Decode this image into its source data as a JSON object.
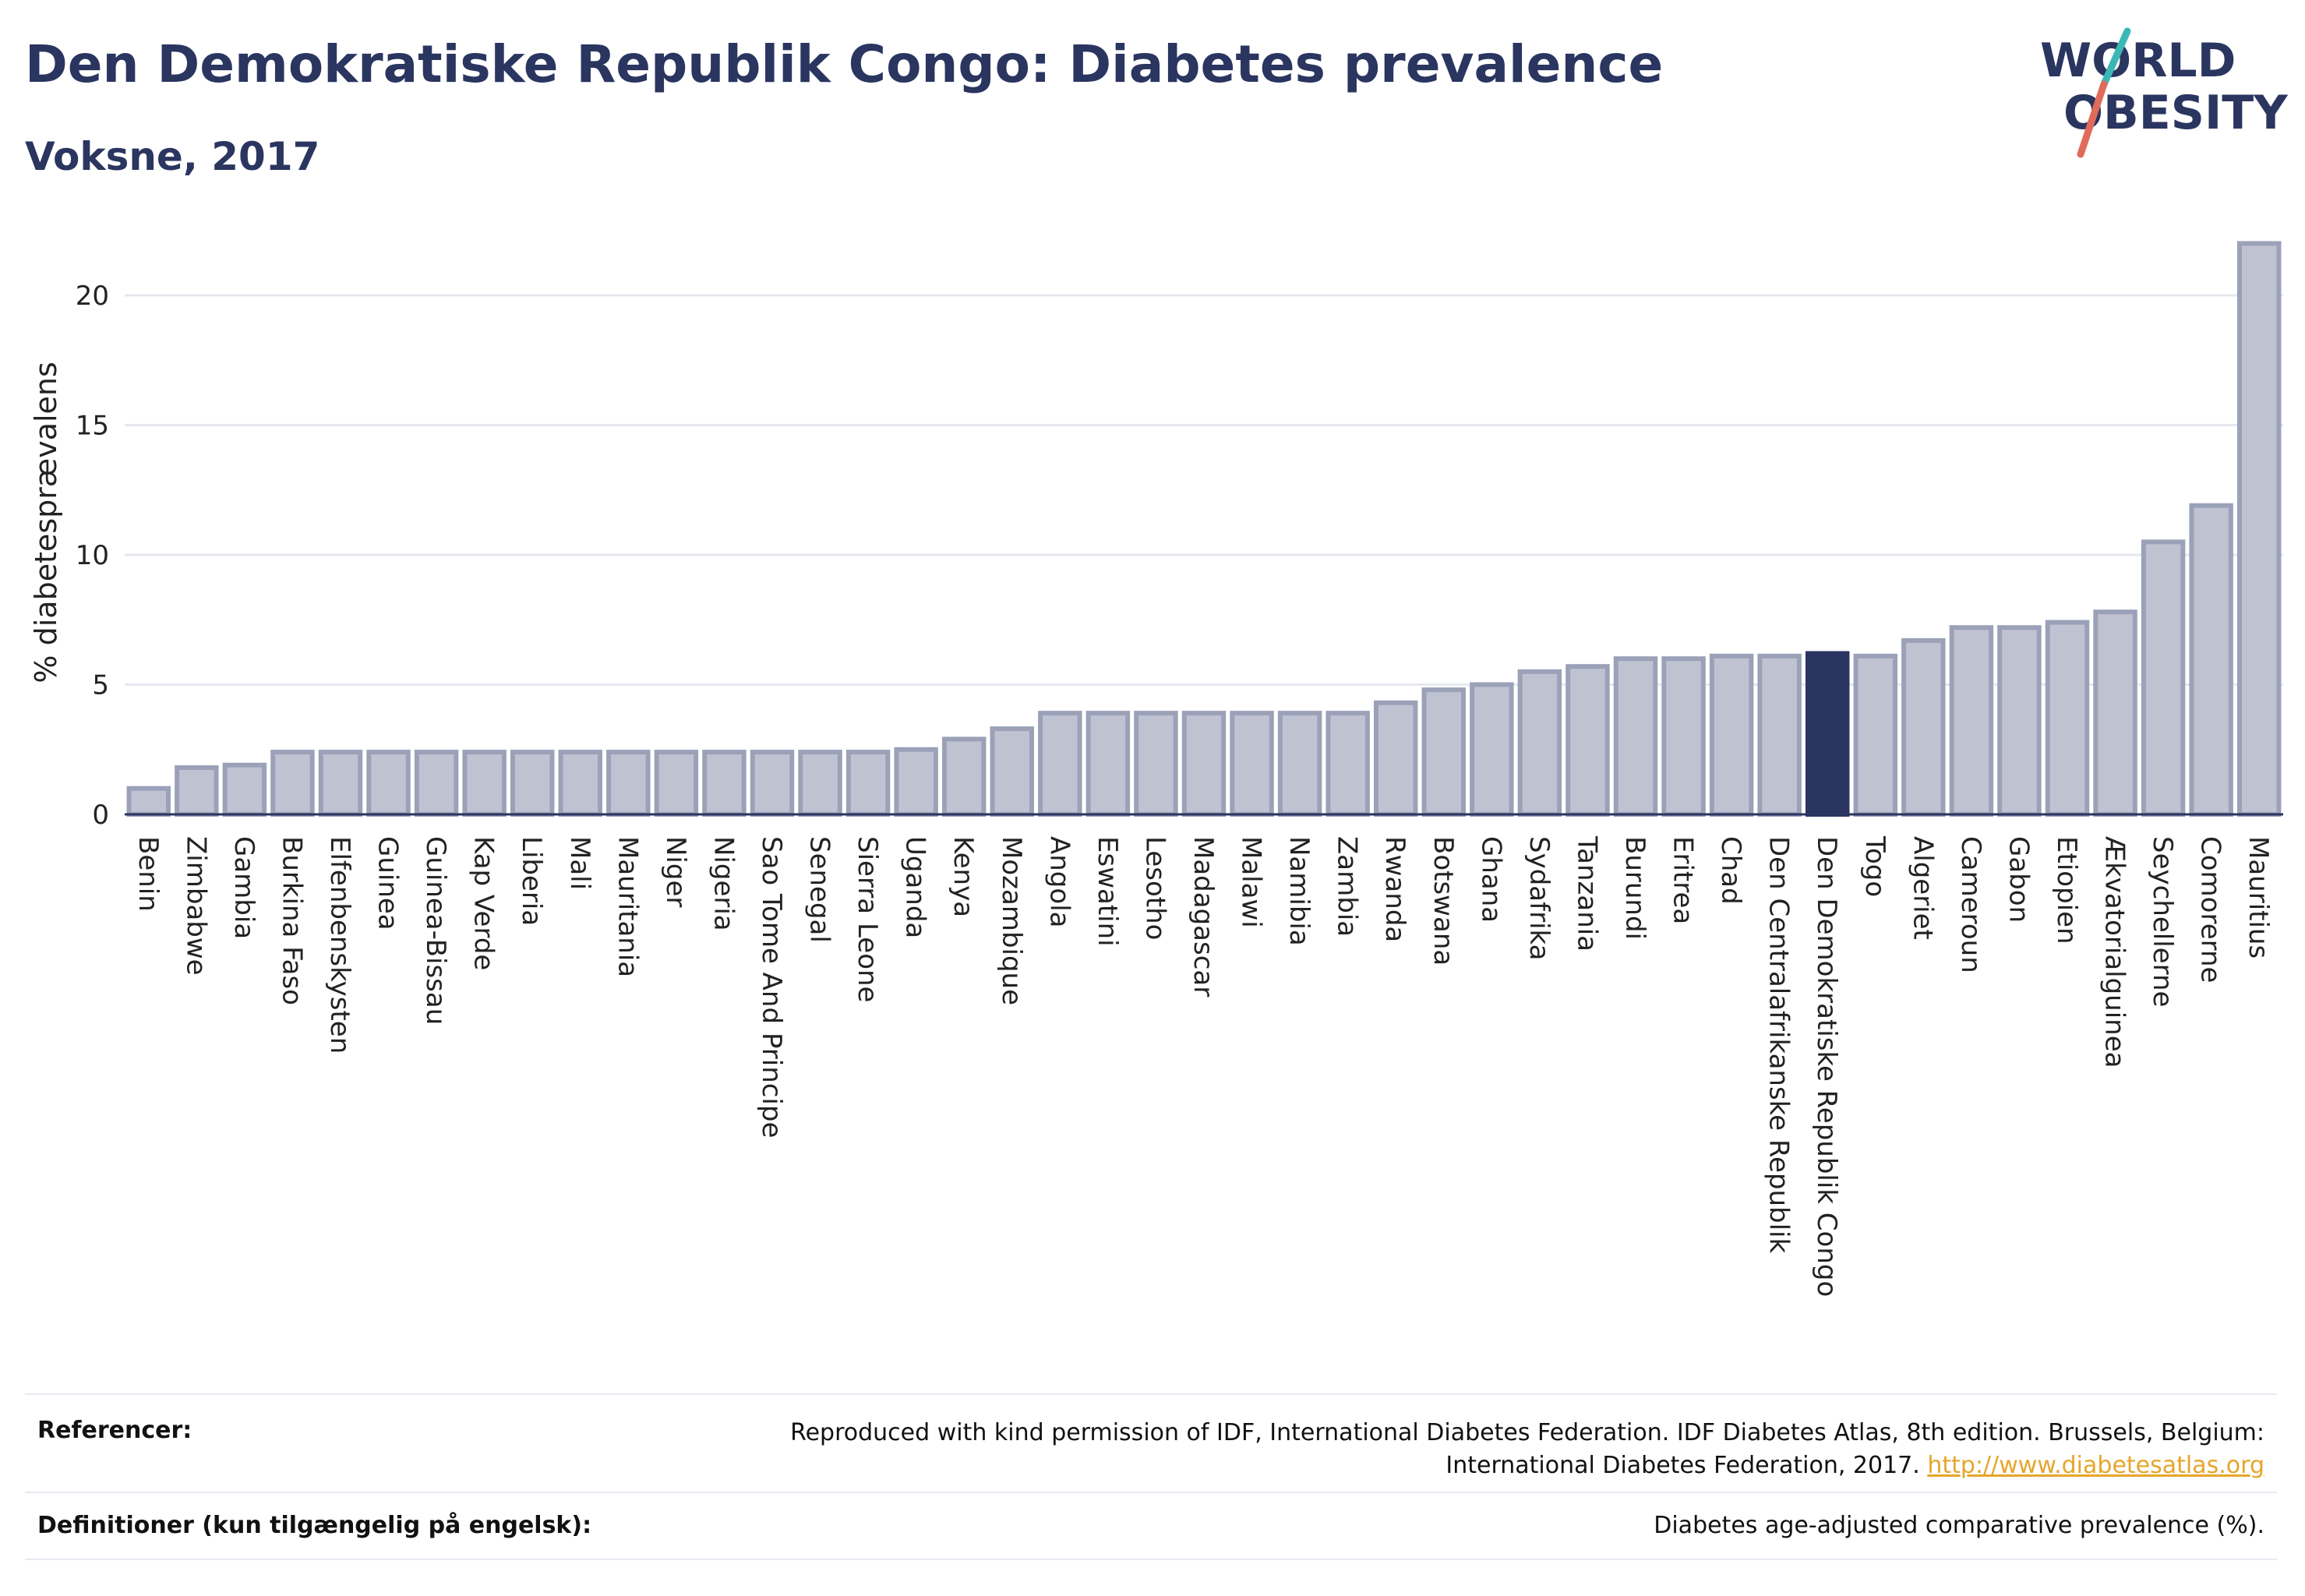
{
  "header": {
    "title": "Den Demokratiske Republik Congo: Diabetes prevalence",
    "subtitle": "Voksne, 2017"
  },
  "logo": {
    "line1": "WORLD",
    "line2": "OBESITY",
    "colors": {
      "text": "#2a3560",
      "slash_teal": "#3bb7b5",
      "slash_red": "#e16b5a"
    }
  },
  "chart_data": {
    "type": "bar",
    "title": "",
    "xlabel": "",
    "ylabel": "% diabetesprævalens",
    "ylim": [
      0,
      22.5
    ],
    "yticks": [
      0,
      5,
      10,
      15,
      20
    ],
    "grid": true,
    "highlight": "Den Demokratiske Republik Congo",
    "colors": {
      "bar": "#bfc3d1",
      "bar_edge": "#9aa1b8",
      "highlight": "#2a3560"
    },
    "categories": [
      "Benin",
      "Zimbabwe",
      "Gambia",
      "Burkina Faso",
      "Elfenbenskysten",
      "Guinea",
      "Guinea-Bissau",
      "Kap Verde",
      "Liberia",
      "Mali",
      "Mauritania",
      "Niger",
      "Nigeria",
      "Sao Tome And Principe",
      "Senegal",
      "Sierra Leone",
      "Uganda",
      "Kenya",
      "Mozambique",
      "Angola",
      "Eswatini",
      "Lesotho",
      "Madagascar",
      "Malawi",
      "Namibia",
      "Zambia",
      "Rwanda",
      "Botswana",
      "Ghana",
      "Sydafrika",
      "Tanzania",
      "Burundi",
      "Eritrea",
      "Chad",
      "Den Centralafrikanske Republik",
      "Den Demokratiske Republik Congo",
      "Togo",
      "Algeriet",
      "Cameroun",
      "Gabon",
      "Etiopien",
      "Ækvatorialguinea",
      "Seychellerne",
      "Comorerne",
      "Mauritius"
    ],
    "values": [
      1.0,
      1.8,
      1.9,
      2.4,
      2.4,
      2.4,
      2.4,
      2.4,
      2.4,
      2.4,
      2.4,
      2.4,
      2.4,
      2.4,
      2.4,
      2.4,
      2.5,
      2.9,
      3.3,
      3.9,
      3.9,
      3.9,
      3.9,
      3.9,
      3.9,
      3.9,
      4.3,
      4.8,
      5.0,
      5.5,
      5.7,
      6.0,
      6.0,
      6.1,
      6.1,
      6.2,
      6.1,
      6.7,
      7.2,
      7.2,
      7.4,
      7.8,
      10.5,
      11.9,
      22.0
    ]
  },
  "references": {
    "label": "Referencer:",
    "text_line1": "Reproduced with kind permission of IDF, International Diabetes Federation. IDF Diabetes Atlas, 8th edition. Brussels, Belgium:",
    "text_line2": "International Diabetes Federation, 2017.",
    "link": "http://www.diabetesatlas.org"
  },
  "definitions": {
    "label": "Definitioner (kun tilgængelig på engelsk):",
    "text": "Diabetes age-adjusted comparative prevalence (%)."
  }
}
